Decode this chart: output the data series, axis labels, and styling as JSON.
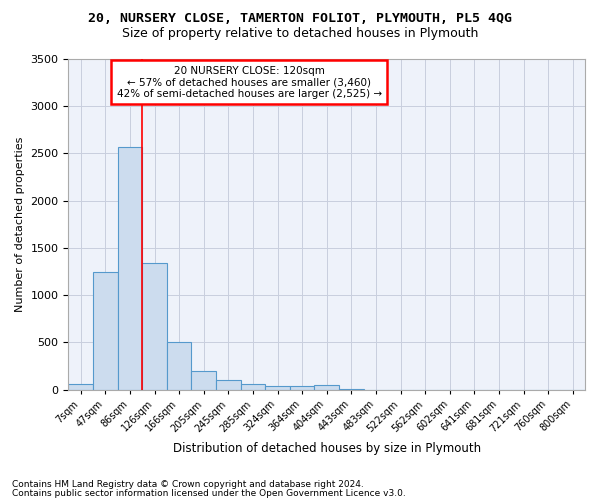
{
  "title": "20, NURSERY CLOSE, TAMERTON FOLIOT, PLYMOUTH, PL5 4QG",
  "subtitle": "Size of property relative to detached houses in Plymouth",
  "xlabel": "Distribution of detached houses by size in Plymouth",
  "ylabel": "Number of detached properties",
  "footer1": "Contains HM Land Registry data © Crown copyright and database right 2024.",
  "footer2": "Contains public sector information licensed under the Open Government Licence v3.0.",
  "annotation_line1": "20 NURSERY CLOSE: 120sqm",
  "annotation_line2": "← 57% of detached houses are smaller (3,460)",
  "annotation_line3": "42% of semi-detached houses are larger (2,525) →",
  "bin_labels": [
    "7sqm",
    "47sqm",
    "86sqm",
    "126sqm",
    "166sqm",
    "205sqm",
    "245sqm",
    "285sqm",
    "324sqm",
    "364sqm",
    "404sqm",
    "443sqm",
    "483sqm",
    "522sqm",
    "562sqm",
    "602sqm",
    "641sqm",
    "681sqm",
    "721sqm",
    "760sqm",
    "800sqm"
  ],
  "bar_values": [
    60,
    1240,
    2570,
    1340,
    500,
    195,
    105,
    55,
    40,
    40,
    50,
    5,
    0,
    0,
    0,
    0,
    0,
    0,
    0,
    0,
    0
  ],
  "bar_color": "#ccdcee",
  "bar_edge_color": "#5599cc",
  "red_line_x": 2.5,
  "ylim": [
    0,
    3500
  ],
  "yticks": [
    0,
    500,
    1000,
    1500,
    2000,
    2500,
    3000,
    3500
  ],
  "background_color": "#eef2fa",
  "grid_color": "#c8cede"
}
